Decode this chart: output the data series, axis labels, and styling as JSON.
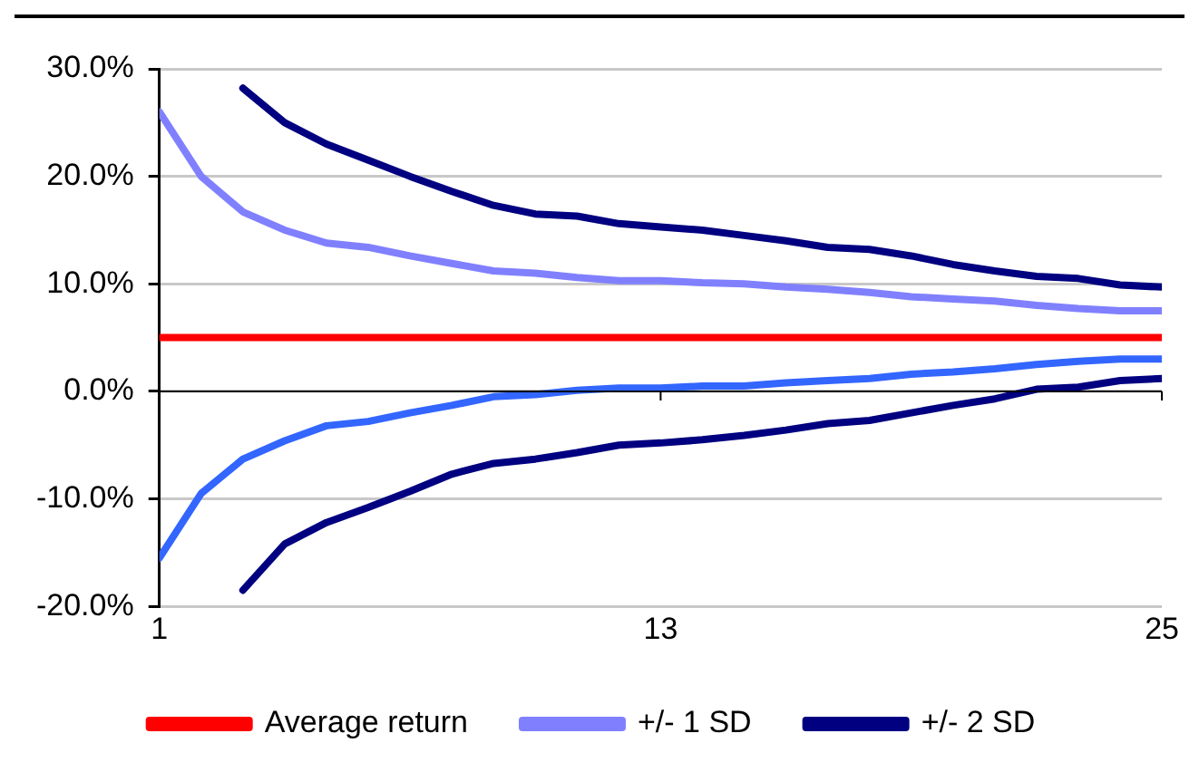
{
  "chart_data": {
    "type": "line",
    "x": [
      1,
      2,
      3,
      4,
      5,
      6,
      7,
      8,
      9,
      10,
      11,
      12,
      13,
      14,
      15,
      16,
      17,
      18,
      19,
      20,
      21,
      22,
      23,
      24,
      25
    ],
    "series": [
      {
        "name": "Average return",
        "color": "#ff0000",
        "values": [
          5,
          5,
          5,
          5,
          5,
          5,
          5,
          5,
          5,
          5,
          5,
          5,
          5,
          5,
          5,
          5,
          5,
          5,
          5,
          5,
          5,
          5,
          5,
          5,
          5
        ]
      },
      {
        "name": "+/- 1 SD",
        "color": "#8080ff",
        "values": [
          26,
          20,
          16.7,
          15,
          13.8,
          13.4,
          12.6,
          11.9,
          11.2,
          11,
          10.6,
          10.3,
          10.3,
          10.1,
          10,
          9.7,
          9.5,
          9.2,
          8.8,
          8.6,
          8.4,
          8,
          7.7,
          7.5,
          7.5
        ]
      },
      {
        "color": "#3366ff",
        "values": [
          -15.5,
          -9.5,
          -6.3,
          -4.6,
          -3.2,
          -2.8,
          -2,
          -1.3,
          -0.5,
          -0.3,
          0.1,
          0.3,
          0.3,
          0.5,
          0.5,
          0.8,
          1,
          1.2,
          1.6,
          1.8,
          2.1,
          2.5,
          2.8,
          3,
          3
        ]
      },
      {
        "name": "+/- 2 SD",
        "color": "#000080",
        "values": [
          null,
          null,
          28.2,
          25,
          23,
          21.5,
          20,
          18.6,
          17.3,
          16.5,
          16.3,
          15.6,
          15.3,
          15,
          14.5,
          14,
          13.4,
          13.2,
          12.6,
          11.8,
          11.2,
          10.7,
          10.5,
          9.9,
          9.7
        ]
      },
      {
        "color": "#000080",
        "values": [
          null,
          null,
          -18.5,
          -14.2,
          -12.2,
          -10.8,
          -9.3,
          -7.7,
          -6.7,
          -6.3,
          -5.7,
          -5,
          -4.8,
          -4.5,
          -4.1,
          -3.6,
          -3,
          -2.7,
          -2,
          -1.3,
          -0.7,
          0.2,
          0.4,
          1,
          1.2
        ]
      }
    ],
    "xlim": [
      1,
      25
    ],
    "xticks": [
      1,
      13,
      25
    ],
    "ylim": [
      -20,
      30
    ],
    "yticks": [
      {
        "value": -20,
        "label": "-20.0%"
      },
      {
        "value": -10,
        "label": "-10.0%"
      },
      {
        "value": 0,
        "label": "0.0%"
      },
      {
        "value": 10,
        "label": "10.0%"
      },
      {
        "value": 20,
        "label": "20.0%"
      },
      {
        "value": 30,
        "label": "30.0%"
      }
    ],
    "grid": "y",
    "legend": "bottom",
    "marker": "none",
    "line_style": "solid"
  }
}
